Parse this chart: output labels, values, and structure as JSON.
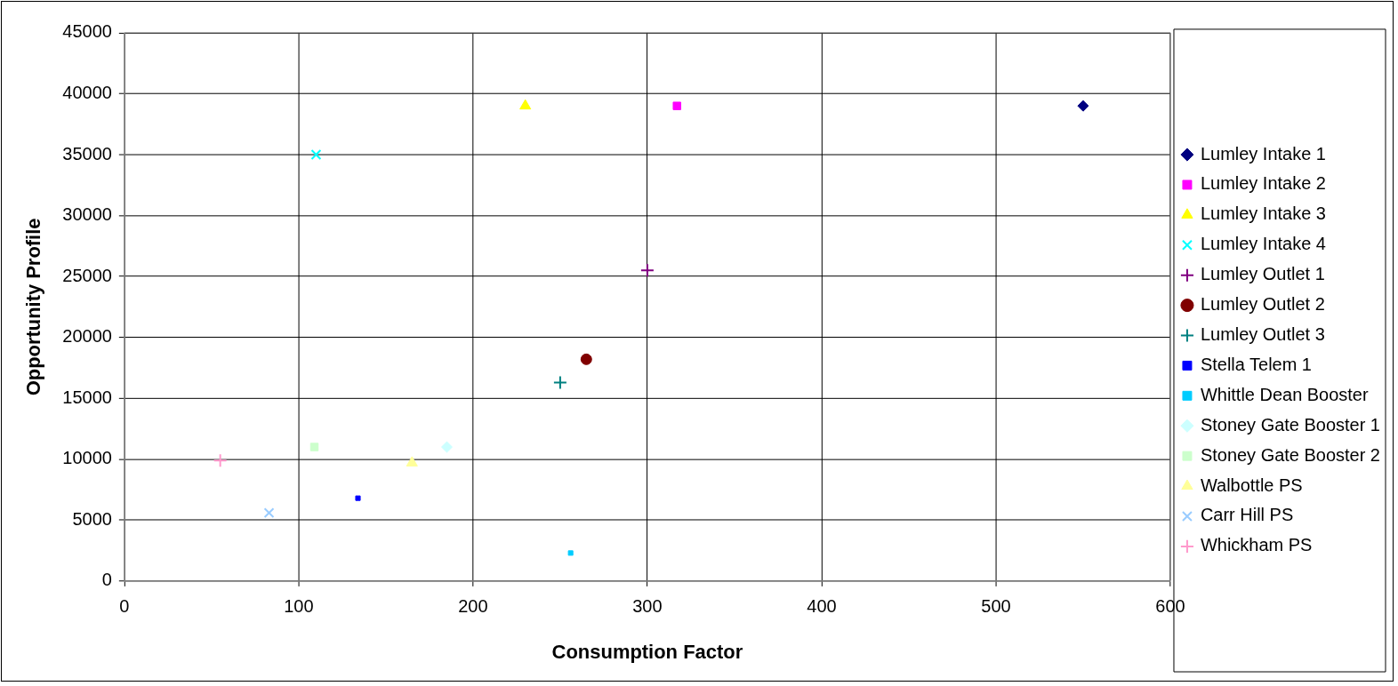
{
  "chart_data": {
    "type": "scatter",
    "xlabel": "Consumption Factor",
    "ylabel": "Opportunity Profile",
    "xlim": [
      0,
      600
    ],
    "xticks": [
      0,
      100,
      200,
      300,
      400,
      500,
      600
    ],
    "ylim": [
      0,
      45000
    ],
    "yticks": [
      0,
      5000,
      10000,
      15000,
      20000,
      25000,
      30000,
      35000,
      40000,
      45000
    ],
    "grid": true,
    "legend": "right",
    "series": [
      {
        "name": "Lumley Intake 1",
        "color": "#000080",
        "marker": "diamond",
        "x": [
          550
        ],
        "values": [
          39000
        ]
      },
      {
        "name": "Lumley Intake 2",
        "color": "#ff00ff",
        "marker": "square",
        "x": [
          317
        ],
        "values": [
          39000
        ]
      },
      {
        "name": "Lumley Intake 3",
        "color": "#ffff00",
        "marker": "triangle",
        "x": [
          230
        ],
        "values": [
          39000
        ]
      },
      {
        "name": "Lumley Intake 4",
        "color": "#00ffff",
        "marker": "x",
        "x": [
          110
        ],
        "values": [
          35000
        ]
      },
      {
        "name": "Lumley Outlet 1",
        "color": "#800080",
        "marker": "cross",
        "x": [
          300
        ],
        "values": [
          25500
        ]
      },
      {
        "name": "Lumley Outlet 2",
        "color": "#800000",
        "marker": "circle",
        "x": [
          265
        ],
        "values": [
          18200
        ]
      },
      {
        "name": "Lumley Outlet 3",
        "color": "#008080",
        "marker": "cross",
        "x": [
          250
        ],
        "values": [
          16300
        ]
      },
      {
        "name": "Stella Telem 1",
        "color": "#0000ff",
        "marker": "square",
        "x": [
          134
        ],
        "values": [
          6800
        ]
      },
      {
        "name": "Whittle Dean Booster",
        "color": "#00ccff",
        "marker": "square",
        "x": [
          256
        ],
        "values": [
          2300
        ]
      },
      {
        "name": "Stoney Gate Booster 1",
        "color": "#ccffff",
        "marker": "diamond",
        "x": [
          185
        ],
        "values": [
          11000
        ]
      },
      {
        "name": "Stoney Gate Booster 2",
        "color": "#ccffcc",
        "marker": "square",
        "x": [
          109
        ],
        "values": [
          11000
        ]
      },
      {
        "name": "Walbottle PS",
        "color": "#ffff99",
        "marker": "triangle",
        "x": [
          165
        ],
        "values": [
          9700
        ]
      },
      {
        "name": "Carr Hill PS",
        "color": "#99ccff",
        "marker": "x",
        "x": [
          83
        ],
        "values": [
          5600
        ]
      },
      {
        "name": "Whickham PS",
        "color": "#ff99cc",
        "marker": "cross",
        "x": [
          55
        ],
        "values": [
          9900
        ]
      }
    ]
  }
}
